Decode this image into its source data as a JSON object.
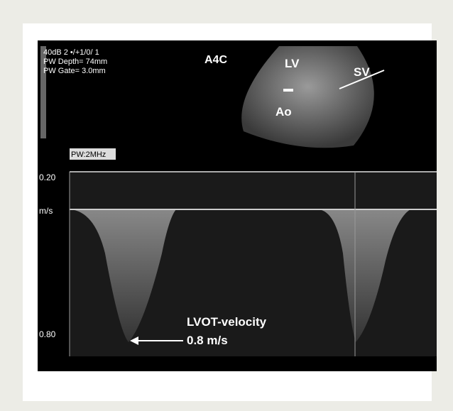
{
  "settings": {
    "line1": "40dB 2 •/+1/0/ 1",
    "line2": "PW Depth= 74mm",
    "line3": "PW Gate= 3.0mm",
    "mode": "PW:2MHz"
  },
  "view": "A4C",
  "labels": {
    "lv": "LV",
    "sv": "SV",
    "ao": "Ao"
  },
  "scale": {
    "top": "0.20",
    "unit": "m/s",
    "bottom": "0.80"
  },
  "annotation": {
    "title": "LVOT-velocity",
    "value": "0.8 m/s"
  }
}
